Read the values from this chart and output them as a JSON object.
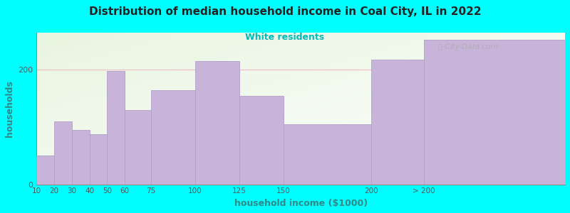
{
  "title": "Distribution of median household income in Coal City, IL in 2022",
  "subtitle": "White residents",
  "xlabel": "household income ($1000)",
  "ylabel": "households",
  "background_outer": "#00FFFF",
  "bar_color": "#c8b4d8",
  "bar_edge_color": "#b0a0c8",
  "title_color": "#222222",
  "subtitle_color": "#00bbbb",
  "axis_label_color": "#338888",
  "tick_label_color": "#555555",
  "gridline_color": "#f0c0c8",
  "watermark_color": "#aaaaaa",
  "categories": [
    "10",
    "20",
    "30",
    "40",
    "50",
    "60",
    "75",
    "100",
    "125",
    "150",
    "200",
    "> 200"
  ],
  "values": [
    50,
    110,
    95,
    88,
    198,
    130,
    165,
    215,
    155,
    105,
    218,
    252
  ],
  "ylim": [
    0,
    265
  ],
  "yticks": [
    0,
    200
  ],
  "bar_lefts": [
    10,
    20,
    30,
    40,
    50,
    60,
    75,
    100,
    125,
    150,
    200,
    230
  ],
  "bar_rights": [
    20,
    30,
    40,
    50,
    60,
    75,
    100,
    125,
    150,
    200,
    230,
    310
  ],
  "xlim_left": 10,
  "xlim_right": 310
}
